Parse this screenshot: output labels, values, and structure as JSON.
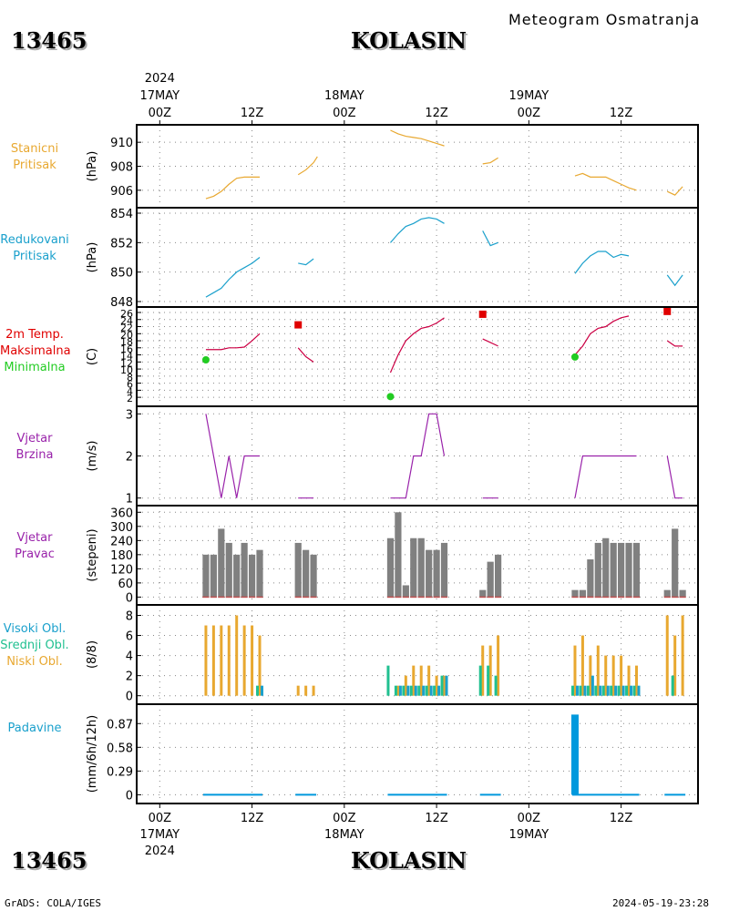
{
  "header": {
    "station_id": "13465",
    "station_name": "KOLASIN",
    "subtitle": "Meteogram Osmatranja"
  },
  "footer": {
    "left": "GrADS: COLA/IGES",
    "right": "2024-05-19-23:28"
  },
  "time_axis": {
    "year": "2024",
    "days": [
      "17MAY",
      "18MAY",
      "19MAY"
    ],
    "hour_labels": [
      "00Z",
      "12Z",
      "00Z",
      "12Z",
      "00Z",
      "12Z"
    ],
    "range_hours": [
      -3,
      70
    ],
    "hour_ticks": [
      0,
      12,
      24,
      36,
      48,
      60
    ]
  },
  "colors": {
    "orange": "#e8a830",
    "blue": "#1aa0cc",
    "red": "#e00000",
    "green": "#22cc22",
    "purple": "#9922aa",
    "gray": "#808080",
    "teal": "#20c090",
    "brown": "#c05050"
  },
  "chart_data": [
    {
      "id": "stanicni",
      "type": "line",
      "label_lines": [
        "Stanicni",
        "Pritisak"
      ],
      "label_color": "#e8a830",
      "unit": "(hPa)",
      "ylim": [
        905,
        911
      ],
      "yticks": [
        "906",
        "908",
        "910"
      ],
      "ytick_values": [
        906,
        908,
        910
      ],
      "grid": true,
      "series": [
        {
          "color": "#e8a830",
          "segments": [
            [
              [
                6,
                905.3
              ],
              [
                7,
                905.5
              ],
              [
                8,
                905.9
              ],
              [
                9,
                906.5
              ],
              [
                10,
                907.0
              ],
              [
                11,
                907.1
              ],
              [
                12,
                907.1
              ],
              [
                13,
                907.1
              ]
            ],
            [
              [
                18,
                907.3
              ],
              [
                19,
                907.7
              ],
              [
                20,
                908.3
              ],
              [
                20.5,
                908.8
              ]
            ],
            [
              [
                30,
                911.0
              ],
              [
                31,
                910.7
              ],
              [
                32,
                910.5
              ],
              [
                33,
                910.4
              ],
              [
                34,
                910.3
              ],
              [
                35,
                910.1
              ],
              [
                36,
                909.9
              ],
              [
                37,
                909.7
              ]
            ],
            [
              [
                42,
                908.2
              ],
              [
                43,
                908.3
              ],
              [
                44,
                908.7
              ]
            ],
            [
              [
                54,
                907.2
              ],
              [
                55,
                907.4
              ],
              [
                56,
                907.1
              ],
              [
                57,
                907.1
              ],
              [
                58,
                907.1
              ],
              [
                59,
                906.8
              ],
              [
                60,
                906.5
              ],
              [
                61,
                906.2
              ],
              [
                62,
                906.0
              ]
            ],
            [
              [
                66,
                905.9
              ],
              [
                67,
                905.6
              ],
              [
                68,
                906.3
              ]
            ]
          ]
        }
      ]
    },
    {
      "id": "redukovani",
      "type": "line",
      "label_lines": [
        "Redukovani",
        "Pritisak"
      ],
      "label_color": "#1aa0cc",
      "unit": "(hPa)",
      "ylim": [
        848,
        854
      ],
      "yticks": [
        "848",
        "850",
        "852",
        "854"
      ],
      "ytick_values": [
        848,
        850,
        852,
        854
      ],
      "grid": true,
      "series": [
        {
          "color": "#1aa0cc",
          "segments": [
            [
              [
                6,
                848.3
              ],
              [
                7,
                848.6
              ],
              [
                8,
                848.9
              ],
              [
                9,
                849.5
              ],
              [
                10,
                850.0
              ],
              [
                11,
                850.3
              ],
              [
                12,
                850.6
              ],
              [
                13,
                851.0
              ]
            ],
            [
              [
                18,
                850.6
              ],
              [
                19,
                850.5
              ],
              [
                20,
                850.9
              ]
            ],
            [
              [
                30,
                852.0
              ],
              [
                31,
                852.6
              ],
              [
                32,
                853.1
              ],
              [
                33,
                853.3
              ],
              [
                34,
                853.6
              ],
              [
                35,
                853.7
              ],
              [
                36,
                853.6
              ],
              [
                37,
                853.3
              ]
            ],
            [
              [
                42,
                852.8
              ],
              [
                43,
                851.8
              ],
              [
                44,
                852.0
              ]
            ],
            [
              [
                54,
                849.9
              ],
              [
                55,
                850.6
              ],
              [
                56,
                851.1
              ],
              [
                57,
                851.4
              ],
              [
                58,
                851.4
              ],
              [
                59,
                851.0
              ],
              [
                60,
                851.2
              ],
              [
                61,
                851.1
              ]
            ],
            [
              [
                66,
                849.8
              ],
              [
                67,
                849.1
              ],
              [
                68,
                849.8
              ]
            ]
          ]
        }
      ]
    },
    {
      "id": "temperatura",
      "type": "line",
      "label_lines": [
        "2m Temp.",
        "Maksimalna",
        "Minimalna"
      ],
      "label_colors": [
        "#e00000",
        "#e00000",
        "#22cc22"
      ],
      "unit": "(C)",
      "ylim": [
        1,
        26
      ],
      "yticks": [
        "2",
        "4",
        "6",
        "8",
        "10",
        "12",
        "14",
        "16",
        "18",
        "20",
        "22",
        "24",
        "26"
      ],
      "ytick_values": [
        2,
        4,
        6,
        8,
        10,
        12,
        14,
        16,
        18,
        20,
        22,
        24,
        26
      ],
      "grid": true,
      "series": [
        {
          "name": "2m Temp.",
          "color": "#cc0044",
          "segments": [
            [
              [
                6,
                15.5
              ],
              [
                7,
                15.5
              ],
              [
                8,
                15.5
              ],
              [
                9,
                16.0
              ],
              [
                10,
                16.0
              ],
              [
                11,
                16.2
              ],
              [
                12,
                18.0
              ],
              [
                13,
                20.0
              ]
            ],
            [
              [
                18,
                16.0
              ],
              [
                19,
                13.5
              ],
              [
                20,
                12.0
              ]
            ],
            [
              [
                30,
                9.0
              ],
              [
                31,
                14.0
              ],
              [
                32,
                18.0
              ],
              [
                33,
                20.0
              ],
              [
                34,
                21.5
              ],
              [
                35,
                22.0
              ],
              [
                36,
                23.0
              ],
              [
                37,
                24.5
              ]
            ],
            [
              [
                42,
                18.5
              ],
              [
                43,
                17.5
              ],
              [
                44,
                16.5
              ]
            ],
            [
              [
                54,
                14.0
              ],
              [
                55,
                16.5
              ],
              [
                56,
                20.0
              ],
              [
                57,
                21.5
              ],
              [
                58,
                22.0
              ],
              [
                59,
                23.5
              ],
              [
                60,
                24.5
              ],
              [
                61,
                25.0
              ]
            ],
            [
              [
                66,
                18.0
              ],
              [
                67,
                16.5
              ],
              [
                68,
                16.5
              ]
            ]
          ]
        }
      ],
      "max_points": [
        [
          18,
          22.5
        ],
        [
          42,
          25.5
        ],
        [
          66,
          26.3
        ]
      ],
      "min_points": [
        [
          6,
          12.6
        ],
        [
          30,
          2.2
        ],
        [
          54,
          13.4
        ]
      ]
    },
    {
      "id": "vjetar_brzina",
      "type": "line",
      "label_lines": [
        "Vjetar",
        "Brzina"
      ],
      "label_color": "#9922aa",
      "unit": "(m/s)",
      "ylim": [
        0.95,
        3.05
      ],
      "yticks": [
        "1",
        "2",
        "3"
      ],
      "ytick_values": [
        1,
        2,
        3
      ],
      "grid": true,
      "series": [
        {
          "color": "#9922aa",
          "segments": [
            [
              [
                6,
                3
              ],
              [
                7,
                2
              ],
              [
                8,
                1
              ],
              [
                9,
                2
              ],
              [
                10,
                1
              ],
              [
                11,
                2
              ],
              [
                12,
                2
              ],
              [
                13,
                2
              ]
            ],
            [
              [
                18,
                1
              ],
              [
                19,
                1
              ],
              [
                20,
                1
              ]
            ],
            [
              [
                30,
                1
              ],
              [
                31,
                1
              ],
              [
                32,
                1
              ],
              [
                33,
                2
              ],
              [
                34,
                2
              ],
              [
                35,
                3
              ],
              [
                36,
                3
              ],
              [
                37,
                2
              ]
            ],
            [
              [
                42,
                1
              ],
              [
                43,
                1
              ],
              [
                44,
                1
              ]
            ],
            [
              [
                54,
                1
              ],
              [
                55,
                2
              ],
              [
                56,
                2
              ],
              [
                57,
                2
              ],
              [
                58,
                2
              ],
              [
                59,
                2
              ],
              [
                60,
                2
              ],
              [
                61,
                2
              ],
              [
                62,
                2
              ]
            ],
            [
              [
                66,
                2
              ],
              [
                67,
                1
              ],
              [
                68,
                1
              ]
            ]
          ]
        }
      ]
    },
    {
      "id": "vjetar_pravac",
      "type": "bar",
      "label_lines": [
        "Vjetar",
        "Pravac"
      ],
      "label_color": "#9922aa",
      "unit": "(stepeni)",
      "ylim": [
        -10,
        365
      ],
      "yticks": [
        "0",
        "60",
        "120",
        "180",
        "240",
        "300",
        "360"
      ],
      "ytick_values": [
        0,
        60,
        120,
        180,
        240,
        300,
        360
      ],
      "grid": true,
      "bar_color": "#808080",
      "x": [
        6,
        7,
        8,
        9,
        10,
        11,
        12,
        13,
        18,
        19,
        20,
        30,
        31,
        32,
        33,
        34,
        35,
        36,
        37,
        42,
        43,
        44,
        54,
        55,
        56,
        57,
        58,
        59,
        60,
        61,
        62,
        66,
        67,
        68
      ],
      "values": [
        180,
        180,
        290,
        230,
        180,
        230,
        180,
        200,
        230,
        200,
        180,
        250,
        360,
        50,
        250,
        250,
        200,
        200,
        230,
        30,
        150,
        180,
        30,
        30,
        160,
        230,
        250,
        230,
        230,
        230,
        230,
        30,
        290,
        30
      ]
    },
    {
      "id": "oblaci",
      "type": "bar",
      "label_lines": [
        "Visoki Obl.",
        "Srednji Obl.",
        "Niski Obl."
      ],
      "label_colors": [
        "#1aa0cc",
        "#20c090",
        "#e8a830"
      ],
      "unit": "(8/8)",
      "ylim": [
        -0.3,
        8.5
      ],
      "yticks": [
        "0",
        "2",
        "4",
        "6",
        "8"
      ],
      "ytick_values": [
        0,
        2,
        4,
        6,
        8
      ],
      "grid": true,
      "x": [
        6,
        7,
        8,
        9,
        10,
        11,
        12,
        13,
        18,
        19,
        20,
        30,
        31,
        32,
        33,
        34,
        35,
        36,
        37,
        42,
        43,
        44,
        54,
        55,
        56,
        57,
        58,
        59,
        60,
        61,
        62,
        66,
        67,
        68
      ],
      "series": [
        {
          "name": "Niski Obl.",
          "color": "#e8a830",
          "values": [
            7,
            7,
            7,
            7,
            8,
            7,
            7,
            6,
            1,
            1,
            1,
            0,
            1,
            2,
            3,
            3,
            3,
            2,
            2,
            5,
            5,
            6,
            5,
            6,
            4,
            5,
            4,
            4,
            4,
            3,
            3,
            8,
            6,
            8
          ]
        },
        {
          "name": "Srednji Obl.",
          "color": "#20c090",
          "values": [
            0,
            0,
            0,
            0,
            0,
            0,
            0,
            1,
            0,
            0,
            0,
            3,
            1,
            1,
            1,
            1,
            1,
            1,
            2,
            3,
            3,
            2,
            1,
            1,
            1,
            1,
            1,
            1,
            1,
            1,
            1,
            0,
            2,
            0
          ]
        },
        {
          "name": "Visoki Obl.",
          "color": "#1aa0cc",
          "values": [
            0,
            0,
            0,
            0,
            0,
            0,
            0,
            1,
            0,
            0,
            0,
            0,
            1,
            1,
            1,
            1,
            1,
            1,
            2,
            0,
            0,
            0,
            1,
            1,
            2,
            1,
            1,
            1,
            1,
            1,
            1,
            0,
            0,
            0
          ]
        }
      ]
    },
    {
      "id": "padavine",
      "type": "bar",
      "label_lines": [
        "Padavine"
      ],
      "label_color": "#1aa0cc",
      "unit": "(mm/6h/12h)",
      "ylim": [
        -0.04,
        1.04
      ],
      "yticks": [
        "0",
        "0.29",
        "0.58",
        "0.87"
      ],
      "ytick_values": [
        0,
        0.29,
        0.58,
        0.87
      ],
      "grid": true,
      "bar_color": "#0099dd",
      "x": [
        54
      ],
      "values": [
        0.98
      ],
      "trace_segments": [
        [
          6,
          13
        ],
        [
          18,
          20
        ],
        [
          30,
          37
        ],
        [
          42,
          44
        ],
        [
          54,
          62
        ],
        [
          66,
          68
        ]
      ]
    }
  ]
}
